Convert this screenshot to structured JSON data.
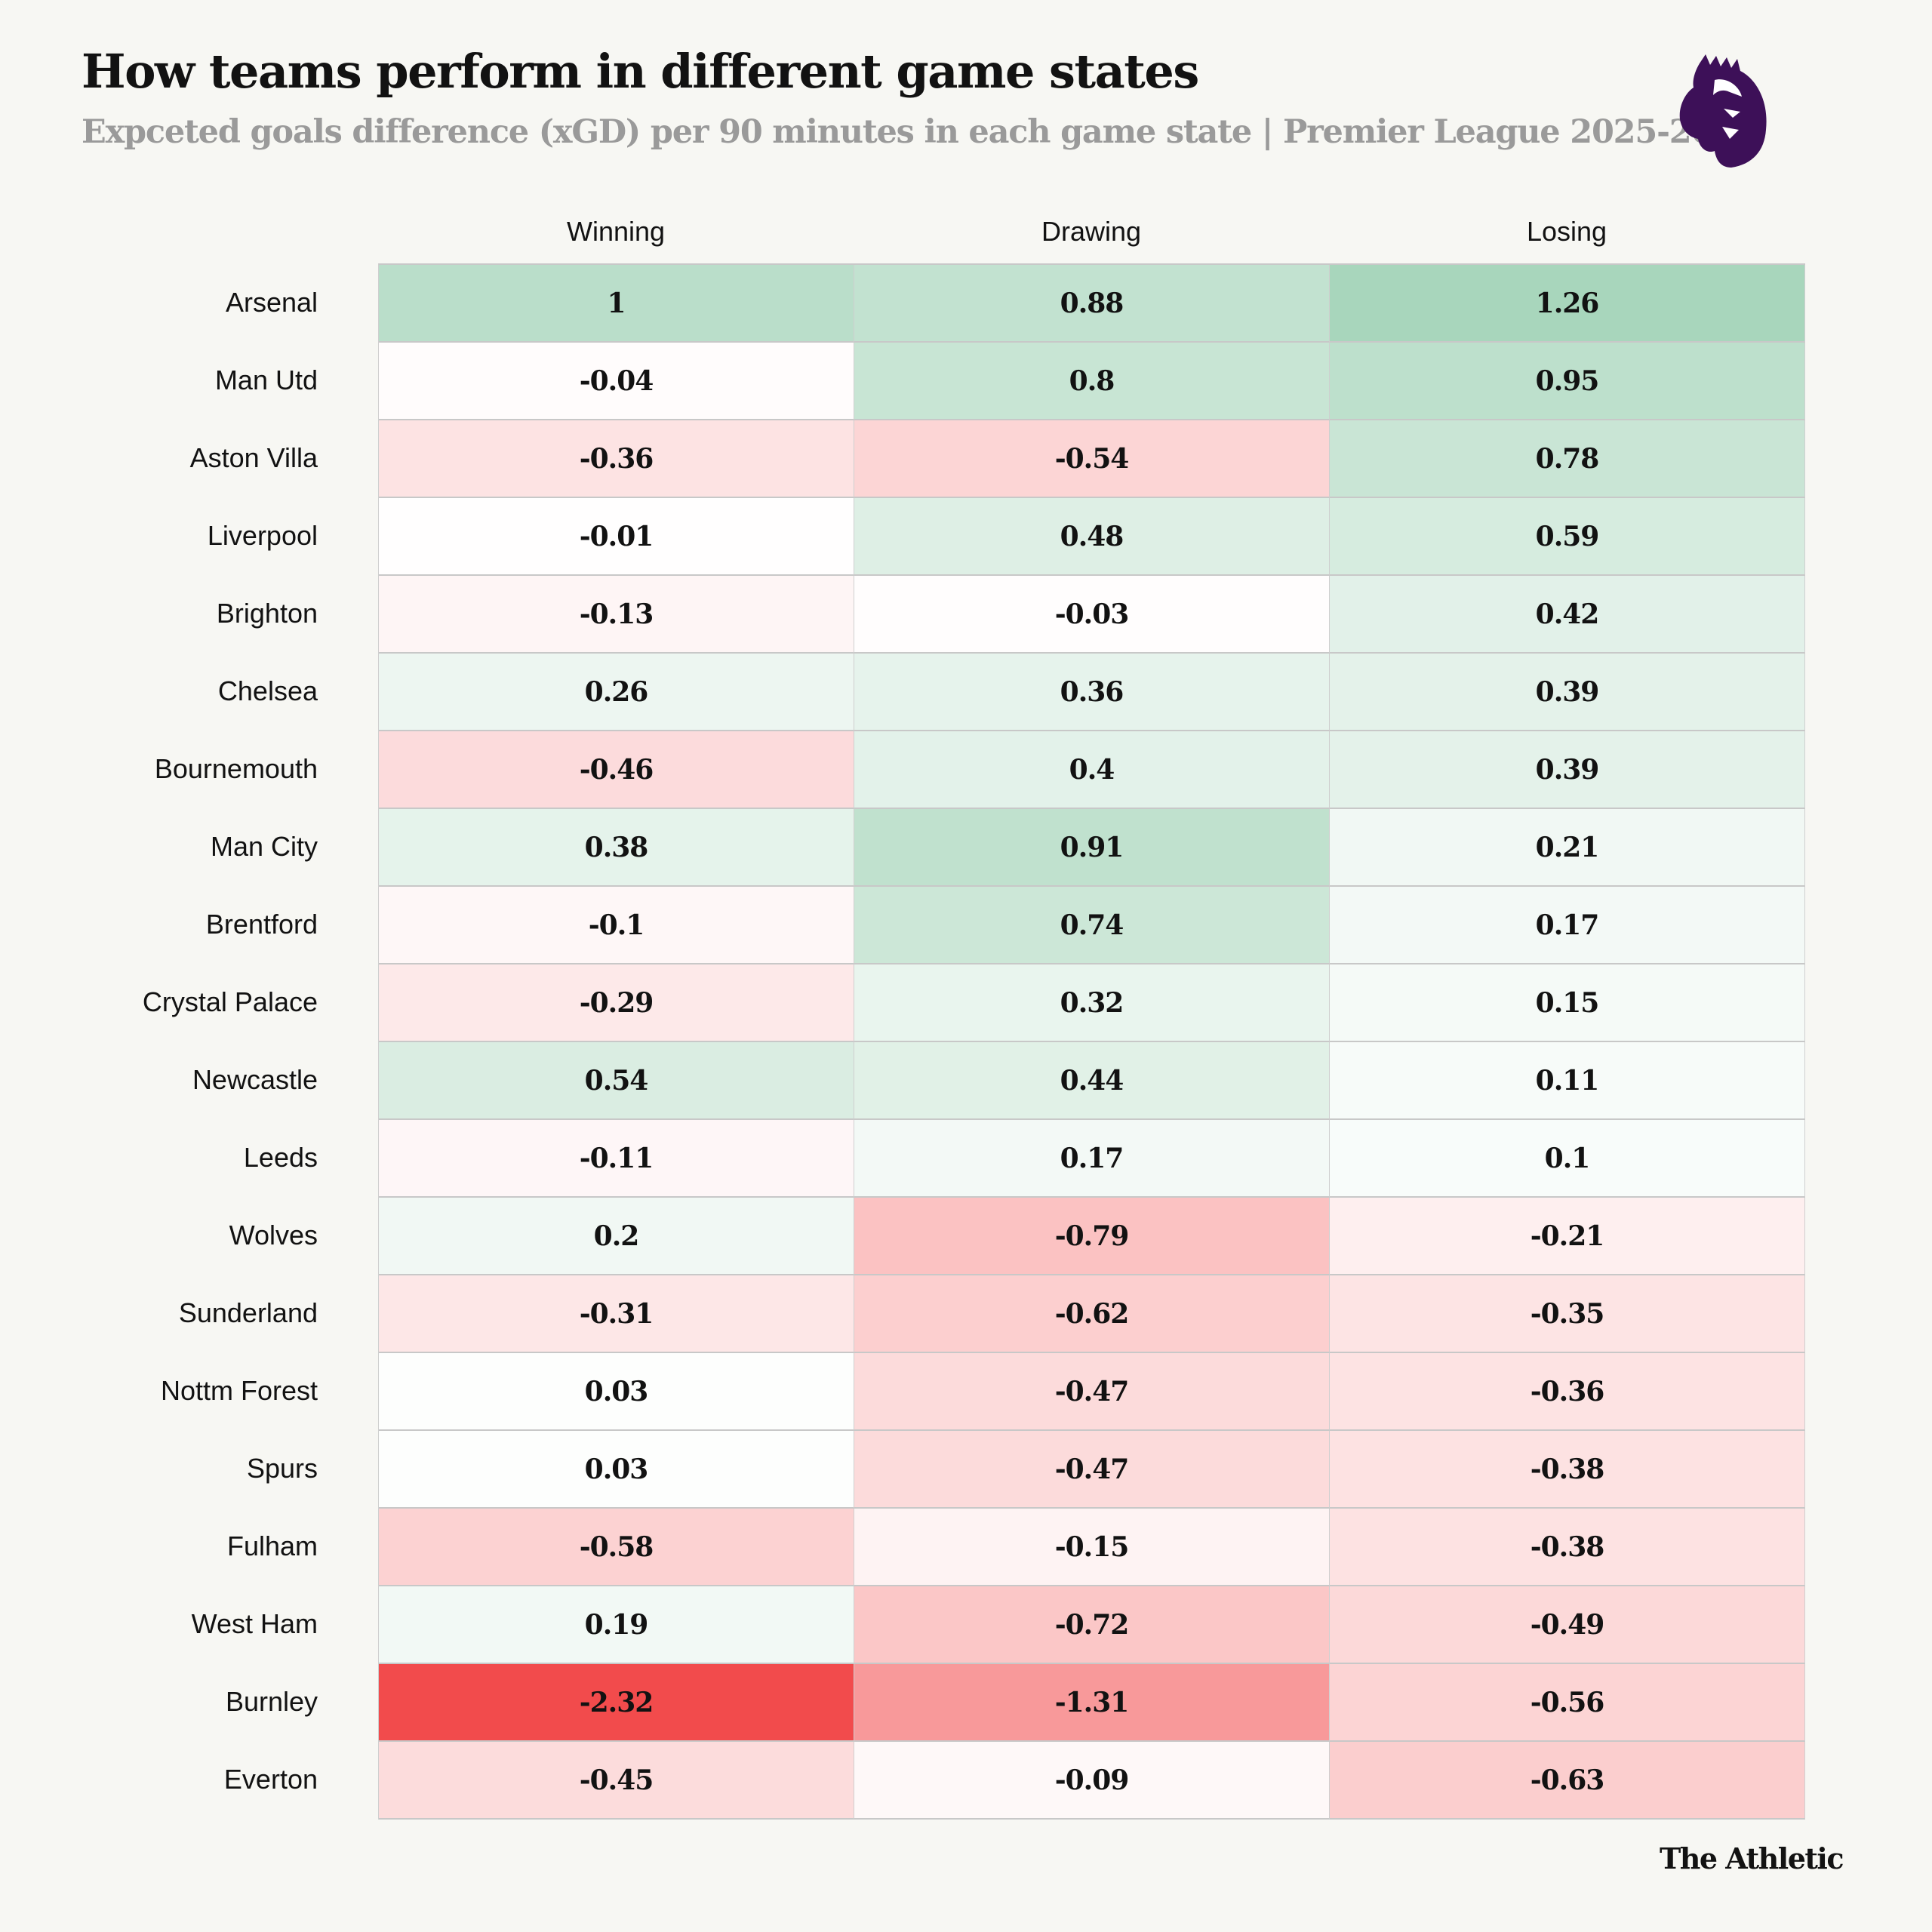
{
  "header": {
    "title": "How teams perform in different game states",
    "subtitle": "Expceted goals difference (xGD) per 90 minutes in each game state | Premier League 2025-26",
    "logo": "premier-league-lion-logo"
  },
  "footer": {
    "brand": "The Athletic"
  },
  "colors": {
    "positive": "#5fb383",
    "negative": "#f24b4c",
    "neutral": "#ffffff",
    "logo": "#3d1058"
  },
  "chart_data": {
    "type": "heatmap",
    "title": "How teams perform in different game states",
    "subtitle": "Expceted goals difference (xGD) per 90 minutes in each game state | Premier League 2025-26",
    "columns": [
      "Winning",
      "Drawing",
      "Losing"
    ],
    "rows": [
      {
        "team": "Arsenal",
        "values": [
          1,
          0.88,
          1.26
        ]
      },
      {
        "team": "Man Utd",
        "values": [
          -0.04,
          0.8,
          0.95
        ]
      },
      {
        "team": "Aston Villa",
        "values": [
          -0.36,
          -0.54,
          0.78
        ]
      },
      {
        "team": "Liverpool",
        "values": [
          -0.01,
          0.48,
          0.59
        ]
      },
      {
        "team": "Brighton",
        "values": [
          -0.13,
          -0.03,
          0.42
        ]
      },
      {
        "team": "Chelsea",
        "values": [
          0.26,
          0.36,
          0.39
        ]
      },
      {
        "team": "Bournemouth",
        "values": [
          -0.46,
          0.4,
          0.39
        ]
      },
      {
        "team": "Man City",
        "values": [
          0.38,
          0.91,
          0.21
        ]
      },
      {
        "team": "Brentford",
        "values": [
          -0.1,
          0.74,
          0.17
        ]
      },
      {
        "team": "Crystal Palace",
        "values": [
          -0.29,
          0.32,
          0.15
        ]
      },
      {
        "team": "Newcastle",
        "values": [
          0.54,
          0.44,
          0.11
        ]
      },
      {
        "team": "Leeds",
        "values": [
          -0.11,
          0.17,
          0.1
        ]
      },
      {
        "team": "Wolves",
        "values": [
          0.2,
          -0.79,
          -0.21
        ]
      },
      {
        "team": "Sunderland",
        "values": [
          -0.31,
          -0.62,
          -0.35
        ]
      },
      {
        "team": "Nottm Forest",
        "values": [
          0.03,
          -0.47,
          -0.36
        ]
      },
      {
        "team": "Spurs",
        "values": [
          0.03,
          -0.47,
          -0.38
        ]
      },
      {
        "team": "Fulham",
        "values": [
          -0.58,
          -0.15,
          -0.38
        ]
      },
      {
        "team": "West Ham",
        "values": [
          0.19,
          -0.72,
          -0.49
        ]
      },
      {
        "team": "Burnley",
        "values": [
          -2.32,
          -1.31,
          -0.56
        ]
      },
      {
        "team": "Everton",
        "values": [
          -0.45,
          -0.09,
          -0.63
        ]
      }
    ],
    "color_domain": [
      -2.32,
      0,
      2.32
    ]
  }
}
